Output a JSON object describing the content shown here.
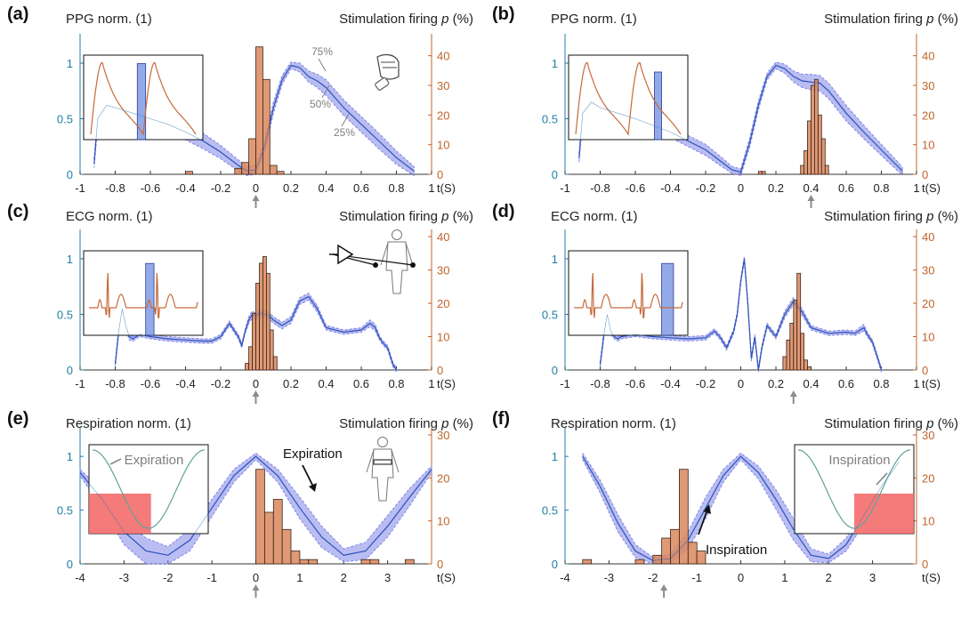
{
  "colors": {
    "left_axis": "#1f7fa6",
    "right_axis": "#c0642a",
    "band_fill": "#7f86e8",
    "median_line": "#2f3fb8",
    "signal_trace": "#2a78b8",
    "hist_fill": "#d9875d",
    "hist_edge": "#3a2418",
    "inset_trace": "#c76a3a",
    "inset_window": "#6f8de0",
    "resp_window": "#f46b6b",
    "resp_inset_trace": "#5fa39a",
    "annotation_text": "#7f7f7f",
    "arrow": "#8c8c8c"
  },
  "chart_data": [
    {
      "panel": "(a)",
      "type": "bar",
      "overlay": "line",
      "left_label": "PPG norm. (1)",
      "right_label_text": "Stimulation firing ",
      "right_label_italic": "p",
      "right_label_unit": " (%)",
      "x_unit": "t(S)",
      "xlim": [
        -1,
        1
      ],
      "xticks": [
        "-1",
        "-0.8",
        "-0.6",
        "-0.4",
        "-0.2",
        "0",
        "0.2",
        "0.4",
        "0.6",
        "0.8",
        "1"
      ],
      "ylim_left": [
        0,
        1.2
      ],
      "yticks_left": [
        "0",
        "0.5",
        "1"
      ],
      "ylim_right": [
        0,
        45
      ],
      "yticks_right": [
        "0",
        "10",
        "20",
        "30",
        "40"
      ],
      "arrow_x": 0,
      "percentile_labels": [
        "75%",
        "50%",
        "25%"
      ],
      "hist": {
        "bin_width": 0.04,
        "bins": [
          [
            -0.4,
            1
          ],
          [
            -0.12,
            2
          ],
          [
            -0.08,
            4
          ],
          [
            -0.04,
            12
          ],
          [
            0.0,
            43
          ],
          [
            0.04,
            32
          ],
          [
            0.08,
            3
          ],
          [
            0.12,
            1
          ]
        ]
      },
      "signal": {
        "x": [
          -0.92,
          -0.9,
          -0.85,
          -0.8,
          -0.7,
          -0.6,
          -0.5,
          -0.4,
          -0.3,
          -0.2,
          -0.1,
          -0.05,
          0,
          0.05,
          0.1,
          0.15,
          0.2,
          0.25,
          0.3,
          0.35,
          0.4,
          0.5,
          0.6,
          0.7,
          0.8,
          0.9
        ],
        "median": [
          0.1,
          0.5,
          0.62,
          0.6,
          0.55,
          0.5,
          0.45,
          0.38,
          0.3,
          0.2,
          0.08,
          0.03,
          0.04,
          0.25,
          0.6,
          0.85,
          0.98,
          0.96,
          0.88,
          0.84,
          0.78,
          0.6,
          0.45,
          0.3,
          0.15,
          0.03
        ],
        "halfwidth": [
          0.04,
          0.06,
          0.06,
          0.06,
          0.06,
          0.06,
          0.07,
          0.07,
          0.07,
          0.06,
          0.05,
          0.04,
          0.04,
          0.05,
          0.05,
          0.04,
          0.03,
          0.04,
          0.05,
          0.06,
          0.07,
          0.07,
          0.07,
          0.07,
          0.06,
          0.04
        ]
      },
      "inset": {
        "kind": "ppg",
        "window": [
          0.45,
          0.52
        ],
        "window_height": 0.9
      },
      "body_icon": "finger-sensor-icon"
    },
    {
      "panel": "(b)",
      "type": "bar",
      "overlay": "line",
      "left_label": "PPG norm. (1)",
      "right_label_text": "Stimulation firing ",
      "right_label_italic": "p",
      "right_label_unit": " (%)",
      "x_unit": "t(S)",
      "xlim": [
        -1,
        1
      ],
      "xticks": [
        "-1",
        "-0.8",
        "-0.6",
        "-0.4",
        "-0.2",
        "0",
        "0.2",
        "0.4",
        "0.6",
        "0.8",
        "1"
      ],
      "ylim_left": [
        0,
        1.2
      ],
      "yticks_left": [
        "0",
        "0.5",
        "1"
      ],
      "ylim_right": [
        0,
        45
      ],
      "yticks_right": [
        "0",
        "10",
        "20",
        "30",
        "40"
      ],
      "arrow_x": 0.4,
      "hist": {
        "bin_width": 0.02,
        "bins": [
          [
            0.1,
            1
          ],
          [
            0.12,
            1
          ],
          [
            0.34,
            3
          ],
          [
            0.36,
            8
          ],
          [
            0.38,
            18
          ],
          [
            0.4,
            30
          ],
          [
            0.42,
            32
          ],
          [
            0.44,
            20
          ],
          [
            0.46,
            12
          ],
          [
            0.48,
            3
          ]
        ]
      },
      "signal": {
        "x": [
          -0.92,
          -0.9,
          -0.85,
          -0.8,
          -0.7,
          -0.6,
          -0.5,
          -0.4,
          -0.3,
          -0.2,
          -0.1,
          -0.05,
          0,
          0.05,
          0.1,
          0.15,
          0.2,
          0.25,
          0.3,
          0.35,
          0.4,
          0.45,
          0.5,
          0.6,
          0.7,
          0.8,
          0.9,
          0.92
        ],
        "median": [
          0.15,
          0.55,
          0.65,
          0.6,
          0.55,
          0.5,
          0.44,
          0.38,
          0.3,
          0.22,
          0.1,
          0.04,
          0.02,
          0.28,
          0.62,
          0.88,
          0.98,
          0.95,
          0.88,
          0.84,
          0.83,
          0.82,
          0.75,
          0.55,
          0.38,
          0.22,
          0.06,
          0.03
        ],
        "halfwidth": [
          0.04,
          0.05,
          0.05,
          0.05,
          0.05,
          0.05,
          0.05,
          0.05,
          0.05,
          0.05,
          0.04,
          0.03,
          0.03,
          0.04,
          0.04,
          0.03,
          0.03,
          0.04,
          0.05,
          0.06,
          0.07,
          0.07,
          0.07,
          0.07,
          0.06,
          0.05,
          0.04,
          0.03
        ]
      },
      "inset": {
        "kind": "ppg",
        "window": [
          0.72,
          0.78
        ],
        "window_height": 0.8
      }
    },
    {
      "panel": "(c)",
      "type": "bar",
      "overlay": "line",
      "left_label": "ECG norm. (1)",
      "right_label_text": "Stimulation firing ",
      "right_label_italic": "p",
      "right_label_unit": " (%)",
      "x_unit": "t(S)",
      "xlim": [
        -1,
        1
      ],
      "xticks": [
        "-1",
        "-0.8",
        "-0.6",
        "-0.4",
        "-0.2",
        "0",
        "0.2",
        "0.4",
        "0.6",
        "0.8",
        "1"
      ],
      "ylim_left": [
        0,
        1.2
      ],
      "yticks_left": [
        "0",
        "0.5",
        "1"
      ],
      "ylim_right": [
        0,
        40
      ],
      "yticks_right": [
        "0",
        "10",
        "20",
        "30",
        "40"
      ],
      "arrow_x": 0,
      "hist": {
        "bin_width": 0.02,
        "bins": [
          [
            -0.06,
            2
          ],
          [
            -0.04,
            7
          ],
          [
            -0.02,
            17
          ],
          [
            0.0,
            26
          ],
          [
            0.02,
            32
          ],
          [
            0.04,
            34
          ],
          [
            0.06,
            29
          ],
          [
            0.08,
            12
          ],
          [
            0.1,
            4
          ]
        ]
      },
      "signal": {
        "x": [
          -0.8,
          -0.78,
          -0.76,
          -0.74,
          -0.72,
          -0.7,
          -0.68,
          -0.66,
          -0.6,
          -0.5,
          -0.4,
          -0.3,
          -0.25,
          -0.2,
          -0.15,
          -0.1,
          -0.08,
          -0.06,
          -0.04,
          -0.02,
          0,
          0.02,
          0.04,
          0.06,
          0.08,
          0.1,
          0.15,
          0.2,
          0.25,
          0.3,
          0.35,
          0.4,
          0.5,
          0.6,
          0.65,
          0.68,
          0.7,
          0.72,
          0.75,
          0.78,
          0.8
        ],
        "median": [
          0.05,
          0.35,
          0.55,
          0.4,
          0.3,
          0.28,
          0.3,
          0.32,
          0.3,
          0.28,
          0.27,
          0.26,
          0.26,
          0.3,
          0.42,
          0.3,
          0.22,
          0.35,
          0.45,
          0.5,
          0.48,
          0.52,
          0.5,
          0.5,
          0.48,
          0.45,
          0.4,
          0.45,
          0.62,
          0.66,
          0.55,
          0.38,
          0.34,
          0.36,
          0.42,
          0.38,
          0.3,
          0.25,
          0.2,
          0.05,
          0.0
        ],
        "halfwidth": [
          0.02,
          0.03,
          0.03,
          0.03,
          0.03,
          0.02,
          0.02,
          0.02,
          0.02,
          0.02,
          0.02,
          0.02,
          0.02,
          0.02,
          0.02,
          0.02,
          0.02,
          0.02,
          0.03,
          0.03,
          0.03,
          0.03,
          0.03,
          0.03,
          0.03,
          0.03,
          0.03,
          0.03,
          0.03,
          0.03,
          0.03,
          0.02,
          0.02,
          0.02,
          0.03,
          0.03,
          0.02,
          0.02,
          0.02,
          0.02,
          0.02
        ]
      },
      "inset": {
        "kind": "ecg",
        "window": [
          0.52,
          0.59
        ],
        "window_height": 0.85
      },
      "body_icon": "ecg-electrodes-icon"
    },
    {
      "panel": "(d)",
      "type": "bar",
      "overlay": "line",
      "left_label": "ECG norm. (1)",
      "right_label_text": "Stimulation firing ",
      "right_label_italic": "p",
      "right_label_unit": " (%)",
      "x_unit": "t(S)",
      "xlim": [
        -1,
        1
      ],
      "xticks": [
        "-1",
        "-0.8",
        "-0.6",
        "-0.4",
        "-0.2",
        "0",
        "0.2",
        "0.4",
        "0.6",
        "0.8",
        "1"
      ],
      "ylim_left": [
        0,
        1.2
      ],
      "yticks_left": [
        "0",
        "0.5",
        "1"
      ],
      "ylim_right": [
        0,
        40
      ],
      "yticks_right": [
        "0",
        "10",
        "20",
        "30",
        "40"
      ],
      "arrow_x": 0.3,
      "hist": {
        "bin_width": 0.02,
        "bins": [
          [
            0.24,
            4
          ],
          [
            0.26,
            9
          ],
          [
            0.28,
            14
          ],
          [
            0.3,
            21
          ],
          [
            0.32,
            29
          ],
          [
            0.34,
            11
          ],
          [
            0.36,
            3
          ],
          [
            0.38,
            1
          ]
        ]
      },
      "signal": {
        "x": [
          -0.8,
          -0.78,
          -0.76,
          -0.74,
          -0.72,
          -0.7,
          -0.68,
          -0.6,
          -0.5,
          -0.4,
          -0.3,
          -0.2,
          -0.15,
          -0.12,
          -0.08,
          -0.04,
          -0.02,
          0,
          0.02,
          0.04,
          0.06,
          0.08,
          0.1,
          0.12,
          0.15,
          0.2,
          0.25,
          0.3,
          0.35,
          0.4,
          0.5,
          0.6,
          0.65,
          0.7,
          0.72,
          0.75,
          0.78,
          0.8
        ],
        "median": [
          0.05,
          0.3,
          0.5,
          0.35,
          0.3,
          0.28,
          0.3,
          0.32,
          0.3,
          0.29,
          0.28,
          0.29,
          0.35,
          0.3,
          0.2,
          0.35,
          0.5,
          0.8,
          1.0,
          0.6,
          0.1,
          0.3,
          0.0,
          0.2,
          0.4,
          0.3,
          0.5,
          0.62,
          0.52,
          0.38,
          0.33,
          0.34,
          0.33,
          0.38,
          0.32,
          0.25,
          0.1,
          0.0
        ],
        "halfwidth": [
          0.02,
          0.03,
          0.03,
          0.03,
          0.02,
          0.02,
          0.02,
          0.02,
          0.02,
          0.02,
          0.02,
          0.02,
          0.02,
          0.02,
          0.02,
          0.02,
          0.02,
          0.02,
          0.02,
          0.02,
          0.02,
          0.02,
          0.02,
          0.02,
          0.02,
          0.02,
          0.03,
          0.03,
          0.03,
          0.02,
          0.02,
          0.02,
          0.02,
          0.03,
          0.02,
          0.02,
          0.02,
          0.02
        ]
      },
      "inset": {
        "kind": "ecg",
        "window": [
          0.78,
          0.88
        ],
        "window_height": 0.85
      }
    },
    {
      "panel": "(e)",
      "type": "bar",
      "overlay": "line",
      "left_label": "Respiration norm. (1)",
      "right_label_text": "Stimulation firing ",
      "right_label_italic": "p",
      "right_label_unit": " (%)",
      "x_unit": "t(S)",
      "xlim": [
        -4,
        4
      ],
      "xticks": [
        "-4",
        "-3",
        "-2",
        "-1",
        "0",
        "1",
        "2",
        "3"
      ],
      "ylim_left": [
        0,
        1.2
      ],
      "yticks_left": [
        "0",
        "0.5",
        "1"
      ],
      "ylim_right": [
        0,
        30
      ],
      "yticks_right": [
        "0",
        "10",
        "20",
        "30"
      ],
      "arrow_x": 0,
      "annotation": "Expiration",
      "inset_annotation": "Expiration",
      "hist": {
        "bin_width": 0.2,
        "bins": [
          [
            0.0,
            22
          ],
          [
            0.2,
            12
          ],
          [
            0.4,
            15
          ],
          [
            0.6,
            8
          ],
          [
            0.8,
            3
          ],
          [
            1.0,
            1
          ],
          [
            1.2,
            1
          ],
          [
            2.4,
            1
          ],
          [
            2.6,
            1
          ],
          [
            3.4,
            1
          ]
        ]
      },
      "signal": {
        "x": [
          -4,
          -3.5,
          -3,
          -2.5,
          -2,
          -1.5,
          -1,
          -0.5,
          0,
          0.5,
          1,
          1.5,
          2,
          2.5,
          3,
          3.5,
          4
        ],
        "median": [
          0.85,
          0.6,
          0.3,
          0.12,
          0.08,
          0.22,
          0.52,
          0.82,
          1.0,
          0.82,
          0.52,
          0.25,
          0.08,
          0.12,
          0.35,
          0.62,
          0.88
        ],
        "halfwidth": [
          0.03,
          0.08,
          0.12,
          0.12,
          0.08,
          0.1,
          0.08,
          0.06,
          0.03,
          0.06,
          0.1,
          0.1,
          0.06,
          0.08,
          0.1,
          0.08,
          0.03
        ]
      },
      "inset": {
        "kind": "resp",
        "window": [
          0.0,
          0.52
        ],
        "window_height": 0.45
      },
      "body_icon": "respiration-belt-icon"
    },
    {
      "panel": "(f)",
      "type": "bar",
      "overlay": "line",
      "left_label": "Respiration norm. (1)",
      "right_label_text": "Stimulation firing ",
      "right_label_italic": "p",
      "right_label_unit": " (%)",
      "x_unit": "t(S)",
      "xlim": [
        -4,
        4
      ],
      "xticks": [
        "-4",
        "-3",
        "-2",
        "-1",
        "0",
        "1",
        "2",
        "3"
      ],
      "ylim_left": [
        0,
        1.2
      ],
      "yticks_left": [
        "0",
        "0.5",
        "1"
      ],
      "ylim_right": [
        0,
        30
      ],
      "yticks_right": [
        "0",
        "10",
        "20",
        "30"
      ],
      "arrow_x": -1.75,
      "annotation": "Inspiration",
      "inset_annotation": "Inspiration",
      "hist": {
        "bin_width": 0.2,
        "bins": [
          [
            -3.6,
            1
          ],
          [
            -2.4,
            1
          ],
          [
            -2.0,
            2
          ],
          [
            -1.8,
            6
          ],
          [
            -1.6,
            8
          ],
          [
            -1.4,
            22
          ],
          [
            -1.2,
            5
          ],
          [
            -1.0,
            3
          ]
        ]
      },
      "signal": {
        "x": [
          -3.6,
          -3.2,
          -2.8,
          -2.4,
          -2,
          -1.6,
          -1.2,
          -0.8,
          -0.4,
          0,
          0.4,
          0.8,
          1.2,
          1.6,
          2,
          2.4,
          2.8,
          3.2,
          3.6
        ],
        "median": [
          1.0,
          0.72,
          0.38,
          0.12,
          0.03,
          0.05,
          0.22,
          0.52,
          0.82,
          1.0,
          0.85,
          0.6,
          0.32,
          0.08,
          0.05,
          0.18,
          0.45,
          0.72,
          0.95
        ],
        "halfwidth": [
          0.03,
          0.06,
          0.08,
          0.06,
          0.03,
          0.04,
          0.08,
          0.1,
          0.06,
          0.03,
          0.06,
          0.09,
          0.1,
          0.06,
          0.04,
          0.06,
          0.08,
          0.06,
          0.04
        ]
      },
      "inset": {
        "kind": "resp",
        "window": [
          0.5,
          1.0
        ],
        "window_height": 0.45
      }
    }
  ]
}
